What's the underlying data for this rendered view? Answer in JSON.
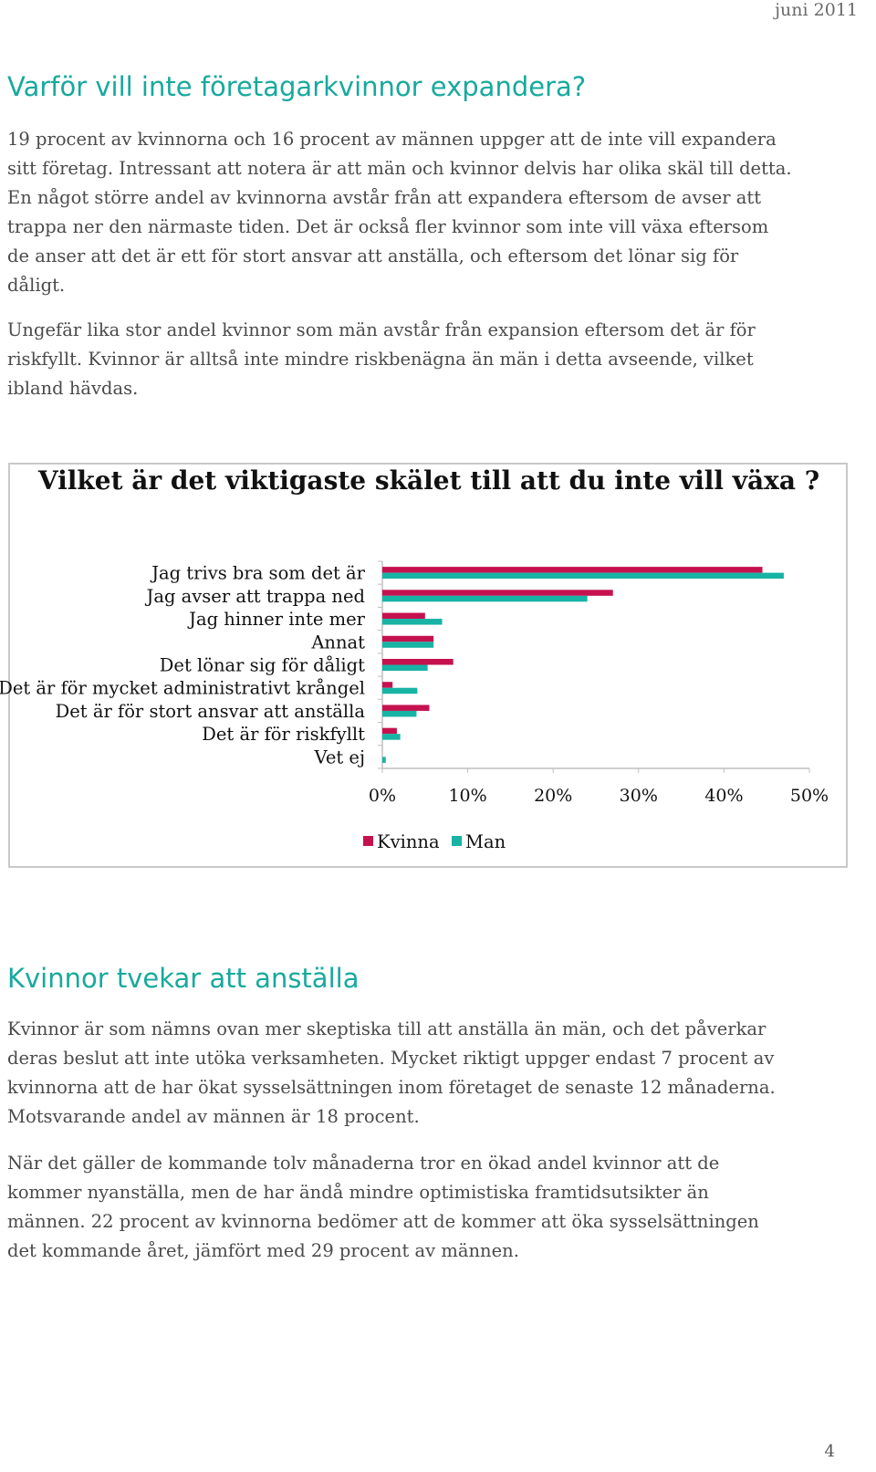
{
  "header": {
    "date": "juni 2011"
  },
  "section1": {
    "heading": "Varför vill inte företagarkvinnor expandera?",
    "paragraphs": [
      "19 procent av kvinnorna och 16 procent av männen uppger att de inte vill expandera sitt företag. Intressant att notera är att män och kvinnor delvis har olika skäl till detta. En något större andel av kvinnorna avstår från att expandera eftersom de avser att trappa ner den närmaste tiden. Det är också fler kvinnor som inte vill växa eftersom de anser att det är ett för stort ansvar att anställa, och eftersom det lönar sig för dåligt.",
      "Ungefär lika stor andel kvinnor som män avstår från expansion eftersom det är för riskfyllt. Kvinnor är alltså inte mindre riskbenägna än män i detta avseende, vilket ibland hävdas."
    ]
  },
  "chart_data": {
    "type": "bar",
    "orientation": "horizontal",
    "title": "Vilket är det viktigaste skälet till att du inte vill växa ?",
    "categories": [
      "Jag trivs bra som det är",
      "Jag avser att trappa ned",
      "Jag hinner inte mer",
      "Annat",
      "Det lönar sig för dåligt",
      "Det är för mycket administrativt krångel",
      "Det är för stort ansvar att anställa",
      "Det är för riskfyllt",
      "Vet ej"
    ],
    "series": [
      {
        "name": "Kvinna",
        "color": "#c5124e",
        "values": [
          44.5,
          27,
          5,
          6,
          8.3,
          1.2,
          5.5,
          1.7,
          0
        ]
      },
      {
        "name": "Man",
        "color": "#17b3a5",
        "values": [
          47,
          24,
          7,
          6,
          5.3,
          4.1,
          4,
          2.1,
          0.4
        ]
      }
    ],
    "xlim": [
      0,
      50
    ],
    "xticks": [
      "0%",
      "10%",
      "20%",
      "30%",
      "40%",
      "50%"
    ],
    "legend": "bottom",
    "grid": false
  },
  "section2": {
    "heading": "Kvinnor tvekar att anställa",
    "paragraphs": [
      "Kvinnor är som nämns ovan mer skeptiska till att anställa än män, och det påverkar deras beslut att inte utöka verksamheten. Mycket riktigt uppger endast 7 procent av kvinnorna att de har ökat sysselsättningen inom företaget de senaste 12 månaderna. Motsvarande andel av männen är 18 procent.",
      "När det gäller de kommande tolv månaderna tror en ökad andel kvinnor att de kommer nyanställa, men de har ändå mindre optimistiska framtidsutsikter än männen. 22 procent av kvinnorna bedömer att de kommer att öka sysselsättningen det kommande året, jämfört med 29 procent av männen."
    ]
  },
  "footer": {
    "page_number": "4"
  }
}
